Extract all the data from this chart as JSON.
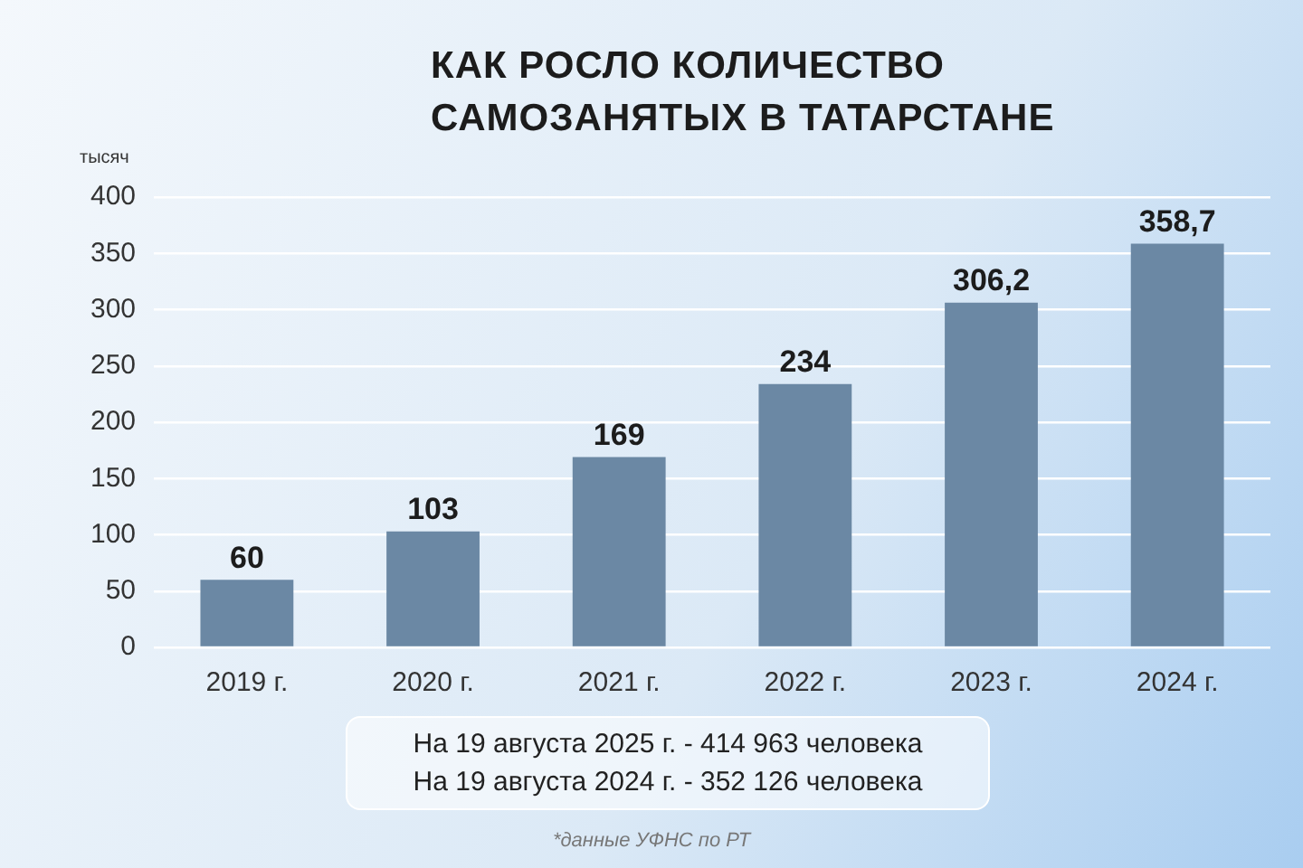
{
  "chart_data": {
    "type": "bar",
    "title": "КАК РОСЛО КОЛИЧЕСТВО САМОЗАНЯТЫХ В ТАТАРСТАНЕ",
    "ylabel": "тысяч",
    "categories": [
      "2019 г.",
      "2020 г.",
      "2021 г.",
      "2022 г.",
      "2023 г.",
      "2024 г."
    ],
    "values": [
      60,
      103,
      169,
      234,
      306.2,
      358.7
    ],
    "value_labels": [
      "60",
      "103",
      "169",
      "234",
      "306,2",
      "358,7"
    ],
    "color": "#6b88a4",
    "ylim": [
      0,
      400
    ],
    "yticks": [
      0,
      50,
      100,
      150,
      200,
      250,
      300,
      350,
      400
    ],
    "grid": "y",
    "annotations": [
      "На 19 августа 2025 г. - 414 963 человека",
      "На 19 августа 2024 г. - 352 126 человека",
      "*данные УФНС по РТ"
    ]
  }
}
